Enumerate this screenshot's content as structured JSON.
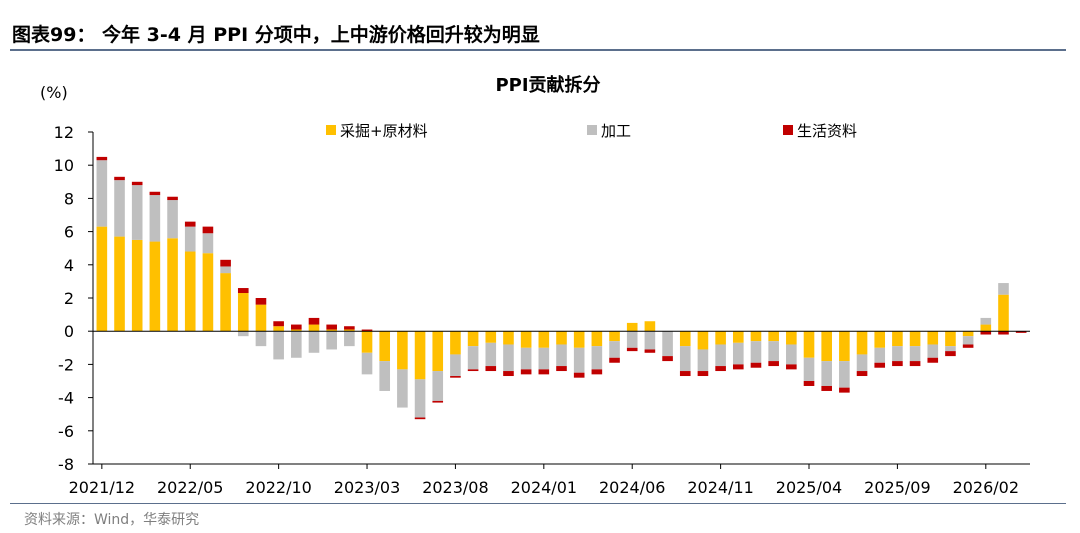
{
  "header": {
    "title": "图表99：  今年 3-4 月 PPI 分项中，上中游价格回升较为明显"
  },
  "footer": {
    "source": "资料来源：Wind，华泰研究"
  },
  "chart_data": {
    "type": "bar",
    "stacked": true,
    "title": "PPI贡献拆分",
    "unit_label": "(%)",
    "xlabel": "",
    "ylabel": "",
    "ylim": [
      -8,
      12
    ],
    "yticks": [
      -8,
      -6,
      -4,
      -2,
      0,
      2,
      4,
      6,
      8,
      10,
      12
    ],
    "grid": false,
    "legend_position": "top",
    "tick_labels": [
      "2021/12",
      "2022/05",
      "2022/10",
      "2023/03",
      "2023/08",
      "2024/01",
      "2024/06",
      "2024/11",
      "2025/04",
      "2025/09",
      "2026/02"
    ],
    "categories": [
      "2021/12",
      "2022/01",
      "2022/02",
      "2022/03",
      "2022/04",
      "2022/05",
      "2022/06",
      "2022/07",
      "2022/08",
      "2022/09",
      "2022/10",
      "2022/11",
      "2022/12",
      "2023/01",
      "2023/02",
      "2023/03",
      "2023/04",
      "2023/05",
      "2023/06",
      "2023/07",
      "2023/08",
      "2023/09",
      "2023/10",
      "2023/11",
      "2023/12",
      "2024/01",
      "2024/02",
      "2024/03",
      "2024/04",
      "2024/05",
      "2024/06",
      "2024/07",
      "2024/08",
      "2024/09",
      "2024/10",
      "2024/11",
      "2024/12",
      "2025/01",
      "2025/02",
      "2025/03",
      "2025/04",
      "2025/05",
      "2025/06",
      "2025/07",
      "2025/08",
      "2025/09",
      "2025/10",
      "2025/11",
      "2025/12",
      "2026/01",
      "2026/02",
      "2026/03",
      "2026/04"
    ],
    "series": [
      {
        "name": "采掘+原材料",
        "color": "#ffc000",
        "values": [
          6.3,
          5.7,
          5.5,
          5.4,
          5.6,
          4.8,
          4.7,
          3.5,
          2.3,
          1.6,
          0.3,
          0.1,
          0.4,
          0.1,
          0.1,
          -1.3,
          -1.8,
          -2.3,
          -2.9,
          -2.4,
          -1.4,
          -0.9,
          -0.7,
          -0.8,
          -1.0,
          -1.0,
          -0.8,
          -1.0,
          -0.9,
          -0.6,
          0.5,
          0.6,
          0.0,
          -0.9,
          -1.1,
          -0.8,
          -0.7,
          -0.6,
          -0.6,
          -0.8,
          -1.6,
          -1.8,
          -1.8,
          -1.4,
          -1.0,
          -0.9,
          -0.9,
          -0.8,
          -0.9,
          -0.3,
          0.4,
          2.2,
          0.0
        ]
      },
      {
        "name": "加工",
        "color": "#bfbfbf",
        "values": [
          4.0,
          3.4,
          3.3,
          2.8,
          2.3,
          1.5,
          1.2,
          0.4,
          -0.3,
          -0.9,
          -1.7,
          -1.6,
          -1.3,
          -1.1,
          -0.9,
          -1.3,
          -1.8,
          -2.3,
          -2.3,
          -1.8,
          -1.3,
          -1.4,
          -1.4,
          -1.6,
          -1.3,
          -1.3,
          -1.3,
          -1.5,
          -1.4,
          -1.0,
          -1.0,
          -1.1,
          -1.5,
          -1.5,
          -1.3,
          -1.3,
          -1.3,
          -1.3,
          -1.2,
          -1.2,
          -1.4,
          -1.5,
          -1.6,
          -1.0,
          -0.9,
          -0.9,
          -0.9,
          -0.8,
          -0.3,
          -0.5,
          0.4,
          0.7,
          0.0
        ]
      },
      {
        "name": "生活资料",
        "color": "#c00000",
        "values": [
          0.2,
          0.2,
          0.2,
          0.2,
          0.2,
          0.3,
          0.4,
          0.4,
          0.3,
          0.4,
          0.3,
          0.3,
          0.4,
          0.3,
          0.2,
          0.1,
          0.0,
          0.0,
          -0.1,
          -0.1,
          -0.1,
          -0.1,
          -0.3,
          -0.3,
          -0.3,
          -0.3,
          -0.3,
          -0.3,
          -0.3,
          -0.3,
          -0.2,
          -0.2,
          -0.3,
          -0.3,
          -0.3,
          -0.3,
          -0.3,
          -0.3,
          -0.3,
          -0.3,
          -0.3,
          -0.3,
          -0.3,
          -0.3,
          -0.3,
          -0.3,
          -0.3,
          -0.3,
          -0.3,
          -0.2,
          -0.2,
          -0.2,
          -0.1
        ]
      }
    ]
  }
}
